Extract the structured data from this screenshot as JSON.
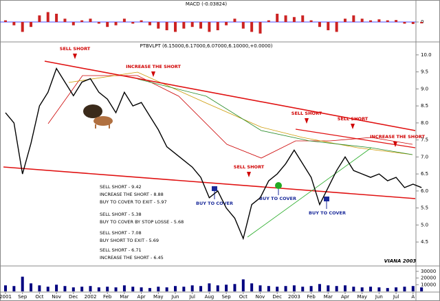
{
  "chart_data": [
    {
      "type": "bar",
      "title": "MACD (-0.03824)",
      "color": "#cc2222",
      "values": [
        0.05,
        -0.1,
        -0.3,
        -0.15,
        0.2,
        0.3,
        0.25,
        0.1,
        -0.1,
        0.05,
        0.1,
        -0.05,
        -0.15,
        -0.1,
        0.1,
        -0.05,
        0.05,
        -0.1,
        -0.2,
        -0.25,
        -0.3,
        -0.2,
        -0.15,
        -0.2,
        -0.3,
        -0.25,
        -0.1,
        0.1,
        -0.2,
        -0.3,
        -0.35,
        0.05,
        0.25,
        0.2,
        0.15,
        0.2,
        0.05,
        -0.15,
        -0.25,
        -0.3,
        0.1,
        0.2,
        0.1,
        0.05,
        0.08,
        0.05,
        0.06,
        -0.05,
        -0.06,
        -0.04
      ],
      "ylim": [
        -0.5,
        0.5
      ],
      "yticks": [
        0
      ]
    },
    {
      "type": "line",
      "title": "PTBVLPT (6.15000,6.17000,6.07000,6.10000,+0.0000)",
      "categories": [
        "2001",
        null,
        "Sep",
        null,
        "Oct",
        null,
        "Nov",
        null,
        "Dec",
        null,
        "2002",
        null,
        "Feb",
        null,
        "Mar",
        null,
        "Apr",
        null,
        "May",
        null,
        "Jun",
        null,
        "Jul",
        null,
        "Aug",
        null,
        "Sep",
        null,
        "Oct",
        null,
        "Nov",
        null,
        "Dec",
        null,
        "2003",
        null,
        "Feb",
        null,
        "Mar",
        null,
        "Apr",
        null,
        "May",
        null,
        "Jun",
        null,
        "Jul",
        null,
        "A",
        null
      ],
      "series": [
        {
          "name": "PTBVLPT",
          "color": "#000000",
          "values": [
            8.3,
            8.0,
            6.5,
            7.4,
            8.5,
            8.9,
            9.6,
            9.2,
            8.8,
            9.2,
            9.3,
            8.9,
            8.7,
            8.3,
            8.9,
            8.5,
            8.6,
            8.2,
            7.8,
            7.3,
            7.1,
            6.9,
            6.7,
            6.4,
            5.8,
            6.0,
            5.5,
            5.2,
            4.6,
            5.6,
            5.8,
            6.3,
            6.5,
            6.8,
            7.2,
            6.8,
            6.4,
            5.6,
            6.1,
            6.6,
            7.0,
            6.6,
            6.5,
            6.4,
            6.5,
            6.3,
            6.4,
            6.1,
            6.2,
            6.1
          ]
        }
      ],
      "ylim": [
        4.2,
        10.3
      ],
      "yticks": [
        4.5,
        {
          "value": 5,
          "label": "5.0"
        },
        5.5,
        {
          "value": 6,
          "label": "6.0"
        },
        6.5,
        {
          "value": 7,
          "label": "7.0"
        },
        7.5,
        {
          "value": 8,
          "label": "8.0"
        },
        8.5,
        {
          "value": 9,
          "label": "9.0"
        },
        9.5,
        {
          "value": 10,
          "label": "10.0"
        }
      ],
      "annotations": [
        "SELL SHORT",
        "INCREASE THE SHORT",
        "SELL SHORT",
        "SELL SHORT",
        "INCREASE THE SHORT",
        "SELL SHORT",
        "BUY TO COVER",
        "BUY TO COVER",
        "BUY TO COVER"
      ],
      "notes": [
        "SELL SHORT - 9.42",
        "INCREASE THE SHORT - 8.88",
        "BUY TO COVER TO EXIT - 5.97",
        "SELL SHORT - 5.38",
        "BUY TO COVER BY STOP LOSSE - 5.68",
        "SELL SHORT - 7.08",
        "BUY SHORT TO EXIT - 5.69",
        "SELL SHORT - 6.71",
        "INCREASE THE SHORT - 6.45"
      ],
      "credit": "VIANA 2003"
    },
    {
      "type": "bar",
      "color": "#000080",
      "values": [
        9000,
        8000,
        22000,
        12000,
        9000,
        7000,
        10000,
        8000,
        6000,
        7000,
        8000,
        6000,
        7000,
        6000,
        9000,
        7000,
        6000,
        5000,
        7000,
        6000,
        8000,
        7000,
        9000,
        8000,
        12000,
        9000,
        10000,
        11000,
        18000,
        12000,
        9000,
        8000,
        7000,
        8000,
        9000,
        7000,
        8000,
        11000,
        9000,
        8000,
        9000,
        7000,
        6000,
        7000,
        6000,
        5000,
        6000,
        7000,
        8000,
        6000
      ],
      "ylim": [
        0,
        35000
      ],
      "yticks": [
        10000,
        20000,
        30000
      ]
    }
  ]
}
